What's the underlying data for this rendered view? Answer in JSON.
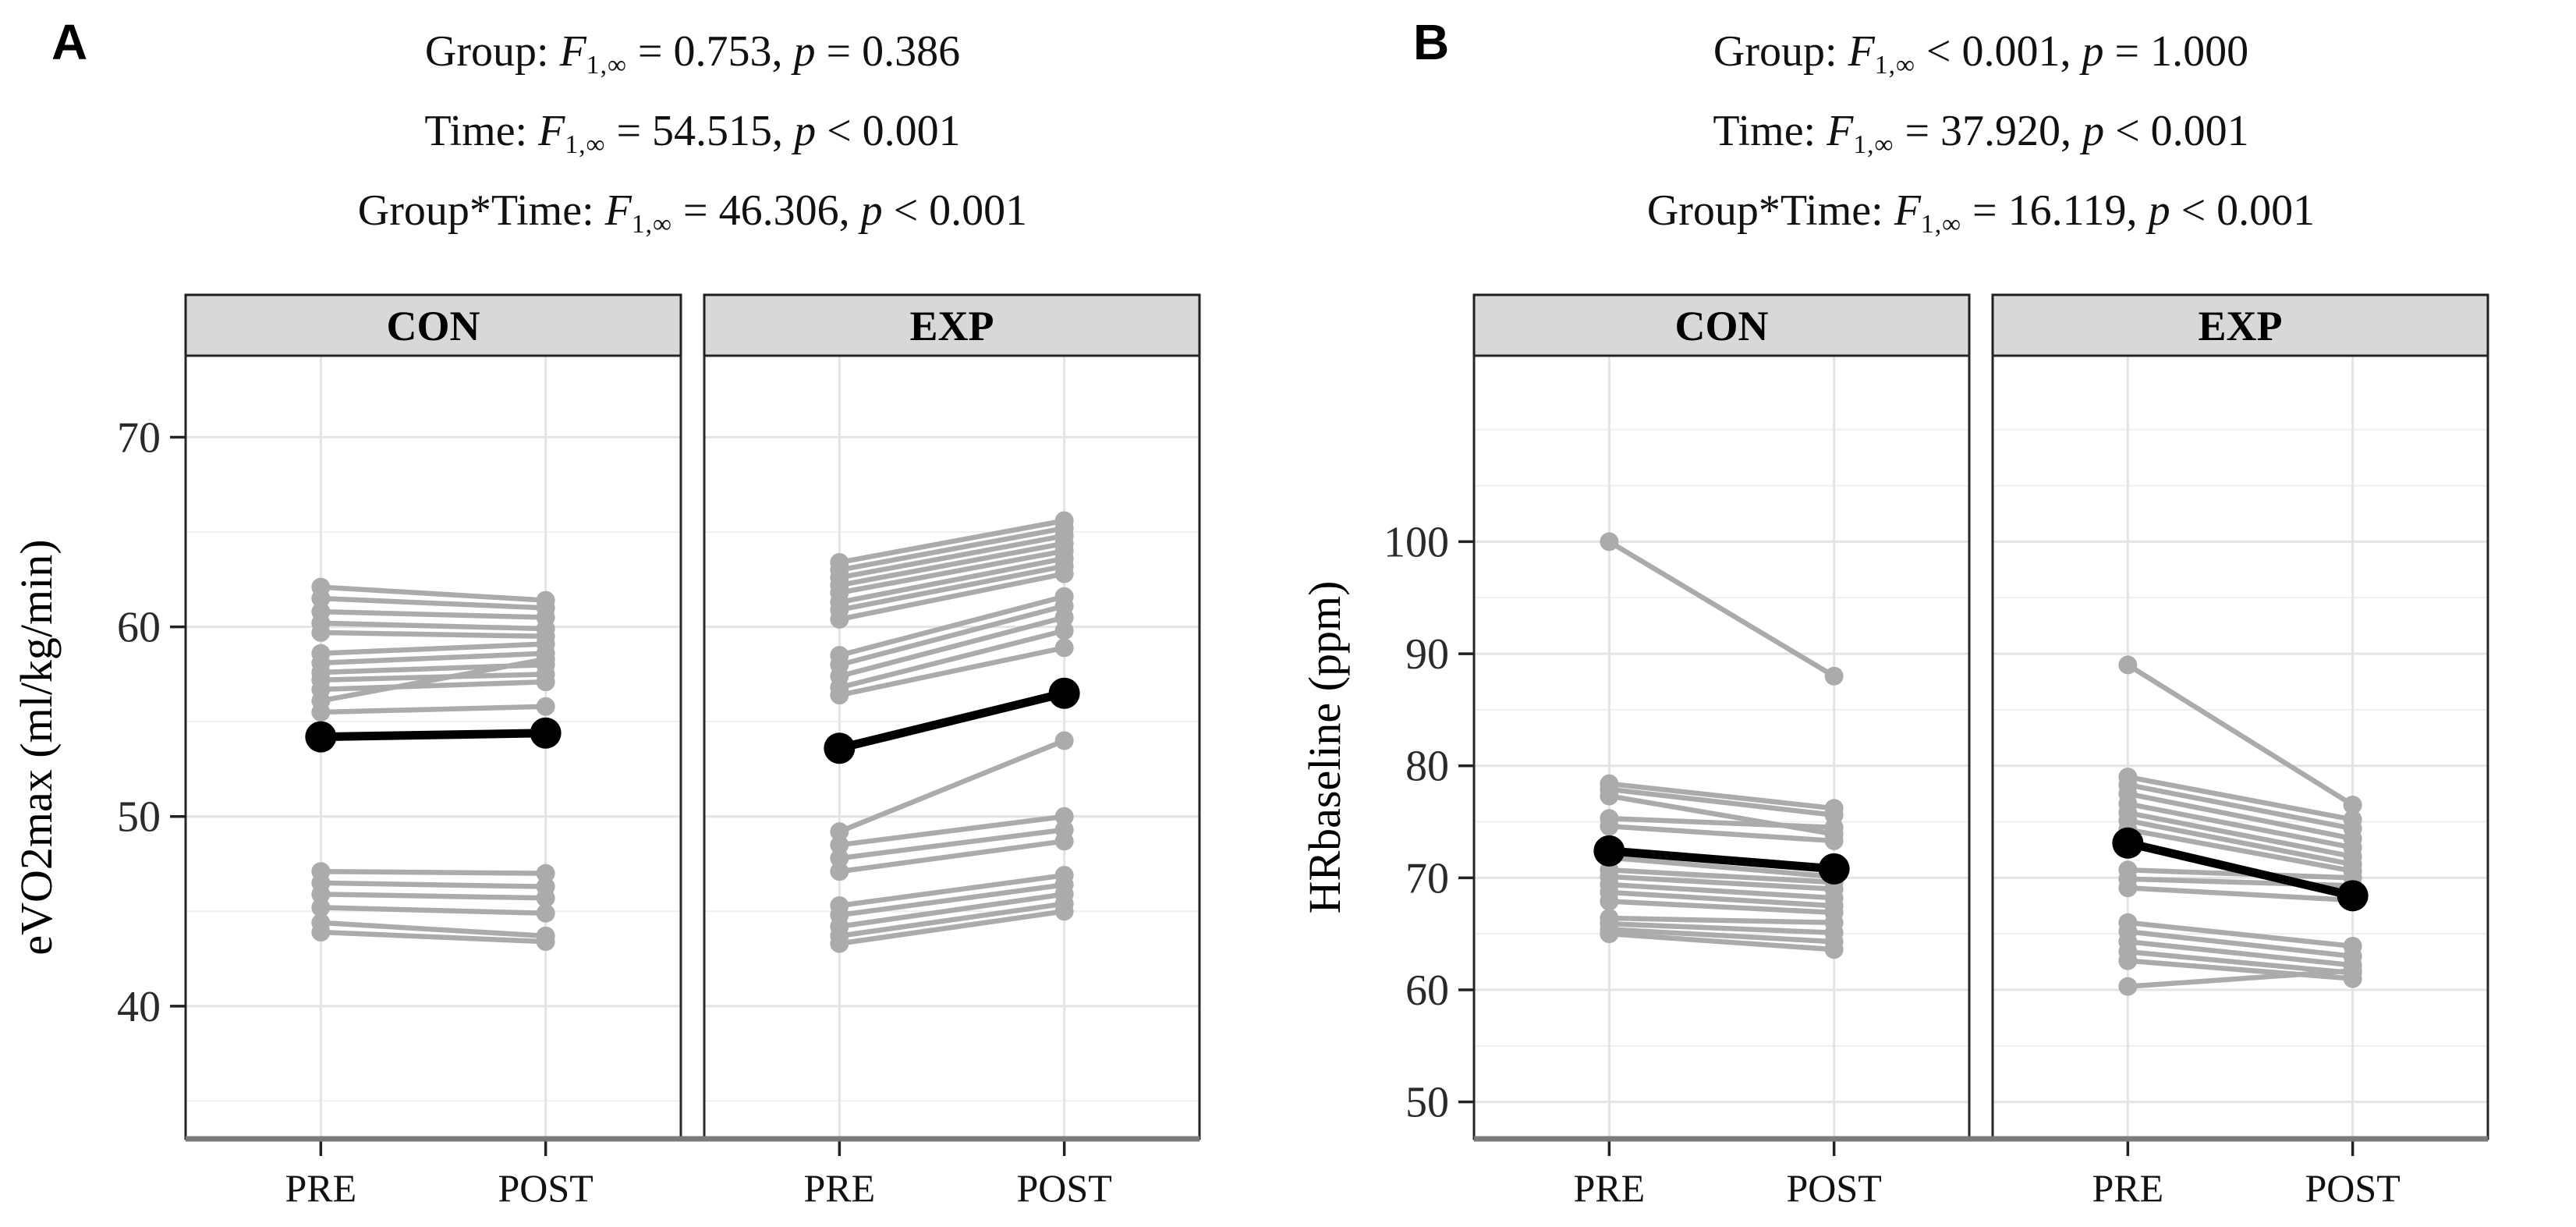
{
  "figure_title": "",
  "colors": {
    "individual": "#ababab",
    "mean": "#000000",
    "strip_bg": "#d8d8d8",
    "strip_border": "#1f1f1f",
    "panel_border": "#262626",
    "grid_major": "#e4e4e4",
    "grid_minor": "#efefef",
    "axis_line": "#7b7b7b",
    "tick": "#222222",
    "text": "#111111"
  },
  "chart_data": [
    {
      "type": "line",
      "panel_label": "A",
      "f_symbol": "F",
      "p_symbol": "p",
      "stats_lines": [
        {
          "prefix": "Group: ",
          "f_sub": "1,∞",
          "f_rest": " = 0.753, ",
          "p_rest": " = 0.386"
        },
        {
          "prefix": "Time: ",
          "f_sub": "1,∞",
          "f_rest": " = 54.515, ",
          "p_rest": " < 0.001"
        },
        {
          "prefix": "Group*Time: ",
          "f_sub": "1,∞",
          "f_rest": " = 46.306, ",
          "p_rest": " < 0.001"
        }
      ],
      "ylabel": "eVO2max (ml/kg/min)",
      "x_categories": [
        "PRE",
        "POST"
      ],
      "ylim": [
        33.0,
        74.3
      ],
      "yticks": [
        40,
        50,
        60,
        70
      ],
      "yticks_minor": [
        35,
        45,
        55,
        65
      ],
      "legend": "none",
      "grid": true,
      "facets": [
        {
          "label": "CON",
          "individuals": [
            [
              62.1,
              61.4
            ],
            [
              61.5,
              61.0
            ],
            [
              60.8,
              60.5
            ],
            [
              60.2,
              59.9
            ],
            [
              59.7,
              59.5
            ],
            [
              58.6,
              59.1
            ],
            [
              58.1,
              58.6
            ],
            [
              57.6,
              58.0
            ],
            [
              57.2,
              57.5
            ],
            [
              56.7,
              57.1
            ],
            [
              56.1,
              58.3
            ],
            [
              55.5,
              55.8
            ],
            [
              47.1,
              47.0
            ],
            [
              46.5,
              46.3
            ],
            [
              45.9,
              45.7
            ],
            [
              45.2,
              44.9
            ],
            [
              44.4,
              43.7
            ],
            [
              43.9,
              43.4
            ]
          ],
          "mean": [
            54.2,
            54.4
          ]
        },
        {
          "label": "EXP",
          "individuals": [
            [
              63.4,
              65.6
            ],
            [
              63.0,
              65.2
            ],
            [
              62.6,
              64.8
            ],
            [
              62.2,
              64.4
            ],
            [
              61.8,
              64.0
            ],
            [
              61.3,
              63.6
            ],
            [
              60.9,
              63.2
            ],
            [
              60.4,
              62.8
            ],
            [
              58.5,
              61.6
            ],
            [
              58.0,
              61.1
            ],
            [
              57.4,
              60.5
            ],
            [
              56.8,
              59.8
            ],
            [
              56.4,
              58.9
            ],
            [
              49.2,
              54.0
            ],
            [
              48.5,
              50.0
            ],
            [
              47.8,
              49.3
            ],
            [
              47.1,
              48.7
            ],
            [
              45.3,
              46.9
            ],
            [
              44.8,
              46.4
            ],
            [
              44.2,
              45.9
            ],
            [
              43.7,
              45.4
            ],
            [
              43.3,
              45.0
            ]
          ],
          "mean": [
            53.6,
            56.5
          ]
        }
      ]
    },
    {
      "type": "line",
      "panel_label": "B",
      "f_symbol": "F",
      "p_symbol": "p",
      "stats_lines": [
        {
          "prefix": "Group: ",
          "f_sub": "1,∞",
          "f_rest": " < 0.001, ",
          "p_rest": " = 1.000"
        },
        {
          "prefix": "Time: ",
          "f_sub": "1,∞",
          "f_rest": " = 37.920, ",
          "p_rest": " < 0.001"
        },
        {
          "prefix": "Group*Time: ",
          "f_sub": "1,∞",
          "f_rest": " = 16.119, ",
          "p_rest": " < 0.001"
        }
      ],
      "ylabel": "HRbaseline (ppm)",
      "x_categories": [
        "PRE",
        "POST"
      ],
      "ylim": [
        46.7,
        116.6
      ],
      "yticks": [
        50,
        60,
        70,
        80,
        90,
        100
      ],
      "yticks_minor": [
        55,
        65,
        75,
        85,
        95,
        105,
        110
      ],
      "legend": "none",
      "grid": true,
      "facets": [
        {
          "label": "CON",
          "individuals": [
            [
              100.0,
              88.0
            ],
            [
              78.4,
              76.2
            ],
            [
              77.9,
              75.6
            ],
            [
              77.3,
              73.9
            ],
            [
              75.3,
              74.5
            ],
            [
              74.6,
              73.3
            ],
            [
              71.8,
              70.1
            ],
            [
              70.7,
              69.6
            ],
            [
              70.1,
              69.0
            ],
            [
              69.4,
              68.2
            ],
            [
              68.7,
              67.5
            ],
            [
              67.9,
              66.9
            ],
            [
              66.4,
              66.0
            ],
            [
              65.9,
              65.1
            ],
            [
              65.4,
              64.3
            ],
            [
              65.0,
              63.6
            ]
          ],
          "mean": [
            72.4,
            70.8
          ]
        },
        {
          "label": "EXP",
          "individuals": [
            [
              89.0,
              76.5
            ],
            [
              79.0,
              75.2
            ],
            [
              78.3,
              74.4
            ],
            [
              77.5,
              73.5
            ],
            [
              76.6,
              72.7
            ],
            [
              75.8,
              71.9
            ],
            [
              75.1,
              71.2
            ],
            [
              74.3,
              70.6
            ],
            [
              70.7,
              70.0
            ],
            [
              69.9,
              69.3
            ],
            [
              69.1,
              68.0
            ],
            [
              66.0,
              63.9
            ],
            [
              65.2,
              63.0
            ],
            [
              64.3,
              62.2
            ],
            [
              63.4,
              61.5
            ],
            [
              62.6,
              61.0
            ],
            [
              60.3,
              61.7
            ]
          ],
          "mean": [
            73.1,
            68.4
          ]
        }
      ]
    }
  ]
}
